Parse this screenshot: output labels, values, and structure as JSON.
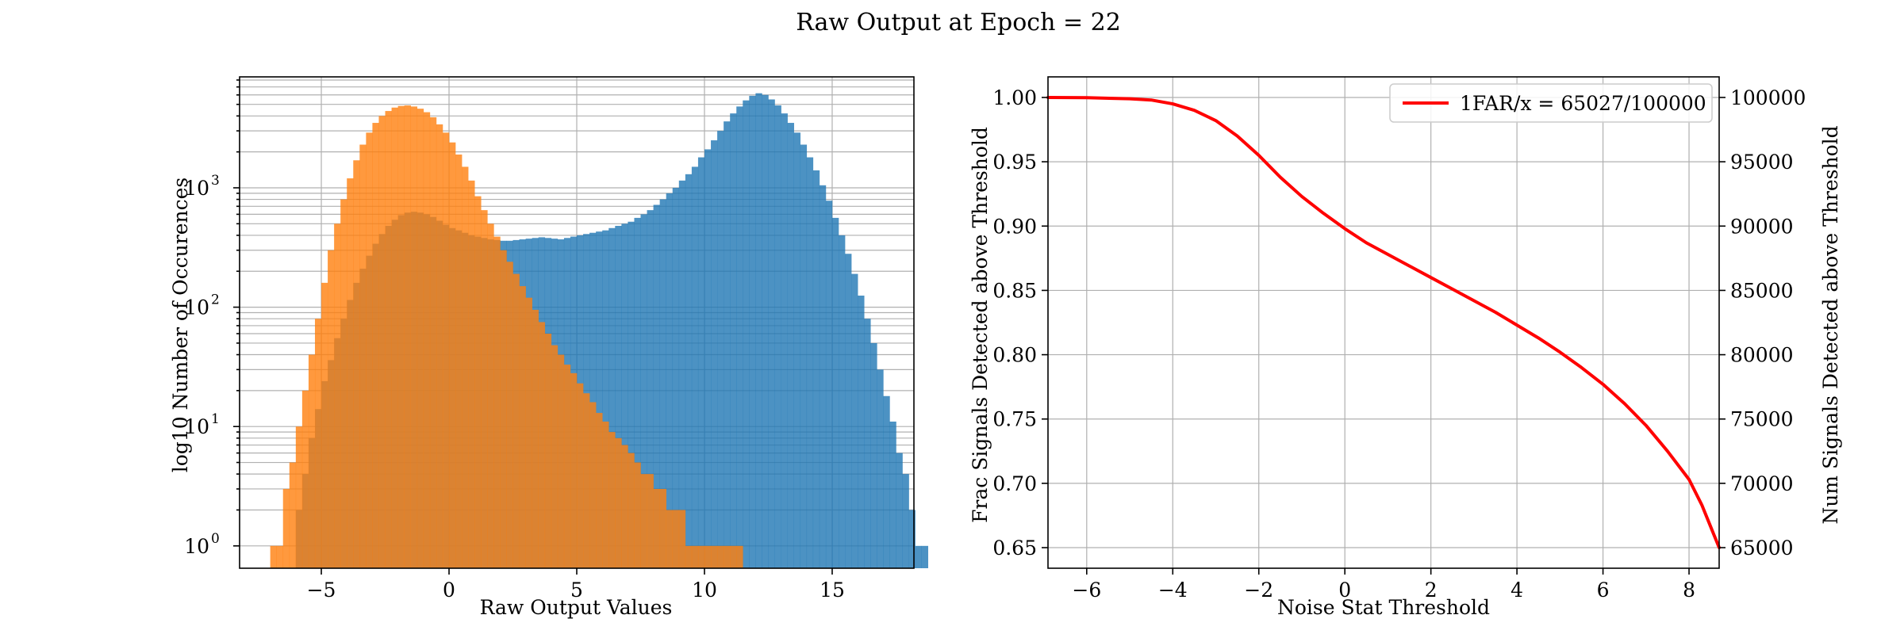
{
  "figure": {
    "title": "Raw Output at Epoch = 22"
  },
  "chart_data": [
    {
      "type": "histogram",
      "xlabel": "Raw Output Values",
      "ylabel": "log10 Number of Occurences",
      "xlim": [
        -8.2,
        18.2
      ],
      "ylim": [
        0.65,
        8500
      ],
      "yscale": "log",
      "grid": true,
      "x_ticks": [
        -5,
        0,
        5,
        10,
        15
      ],
      "x_tick_labels": [
        "−5",
        "0",
        "5",
        "10",
        "15"
      ],
      "y_ticks": [
        1,
        10,
        100,
        1000
      ],
      "y_tick_labels": [
        "10",
        "10",
        "10",
        "10"
      ],
      "y_tick_exponents": [
        "0",
        "1",
        "2",
        "3"
      ],
      "series": [
        {
          "color": "#1f77b4",
          "alpha": 0.8,
          "bins": {
            "start": -6.0,
            "width": 0.25,
            "counts": [
              2,
              4,
              8,
              14,
              24,
              36,
              55,
              80,
              115,
              160,
              210,
              270,
              340,
              410,
              480,
              540,
              590,
              620,
              630,
              620,
              600,
              570,
              530,
              490,
              460,
              440,
              420,
              400,
              390,
              380,
              370,
              365,
              360,
              360,
              365,
              370,
              375,
              380,
              385,
              380,
              375,
              370,
              380,
              390,
              400,
              410,
              420,
              430,
              440,
              460,
              480,
              500,
              520,
              560,
              600,
              650,
              720,
              800,
              900,
              1000,
              1150,
              1300,
              1500,
              1800,
              2100,
              2500,
              3000,
              3600,
              4200,
              4800,
              5400,
              5900,
              6200,
              6000,
              5500,
              4900,
              4200,
              3500,
              2900,
              2300,
              1800,
              1400,
              1050,
              780,
              560,
              400,
              280,
              190,
              125,
              80,
              50,
              30,
              18,
              11,
              6,
              4,
              2,
              1,
              1
            ]
          }
        },
        {
          "color": "#ff7f0e",
          "alpha": 0.8,
          "bins": {
            "start": -7.0,
            "width": 0.25,
            "counts": [
              1,
              1,
              3,
              5,
              10,
              20,
              40,
              80,
              160,
              300,
              500,
              800,
              1200,
              1700,
              2300,
              2900,
              3500,
              4000,
              4400,
              4700,
              4850,
              4900,
              4800,
              4600,
              4300,
              3900,
              3400,
              2900,
              2400,
              1900,
              1500,
              1150,
              850,
              650,
              500,
              390,
              300,
              240,
              190,
              150,
              120,
              95,
              75,
              60,
              48,
              40,
              33,
              28,
              23,
              19,
              16,
              13,
              11,
              9,
              8,
              7,
              6,
              5,
              4,
              4,
              3,
              3,
              2,
              2,
              2,
              1,
              1,
              1,
              1,
              1,
              1,
              1,
              1,
              1,
              0,
              0,
              0,
              0,
              0,
              0,
              0,
              0,
              0,
              0,
              0,
              0,
              0,
              0,
              0,
              0,
              0,
              0,
              0,
              0,
              0,
              0,
              0,
              0,
              0
            ]
          }
        }
      ]
    },
    {
      "type": "line",
      "xlabel": "Noise Stat Threshold",
      "ylabel": "Frac Signals Detected above Threshold",
      "ylabel_right": "Num Signals Detected above Threshold",
      "xlim": [
        -6.9,
        8.7
      ],
      "ylim": [
        0.634,
        1.016
      ],
      "ylim_right": [
        63400,
        101600
      ],
      "grid": true,
      "legend_placement": "upper right",
      "x_ticks": [
        -6,
        -4,
        -2,
        0,
        2,
        4,
        6,
        8
      ],
      "x_tick_labels": [
        "−6",
        "−4",
        "−2",
        "0",
        "2",
        "4",
        "6",
        "8"
      ],
      "y_ticks": [
        0.65,
        0.7,
        0.75,
        0.8,
        0.85,
        0.9,
        0.95,
        1.0
      ],
      "y_tick_labels": [
        "0.65",
        "0.70",
        "0.75",
        "0.80",
        "0.85",
        "0.90",
        "0.95",
        "1.00"
      ],
      "y_ticks_right": [
        65000,
        70000,
        75000,
        80000,
        85000,
        90000,
        95000,
        100000
      ],
      "y_tick_labels_right": [
        "65000",
        "70000",
        "75000",
        "80000",
        "85000",
        "90000",
        "95000",
        "100000"
      ],
      "series": [
        {
          "name": "1FAR/x = 65027/100000",
          "color": "#ff0000",
          "x": [
            -6.9,
            -6.0,
            -5.0,
            -4.5,
            -4.0,
            -3.5,
            -3.0,
            -2.5,
            -2.0,
            -1.5,
            -1.0,
            -0.5,
            0.0,
            0.5,
            1.0,
            1.5,
            2.0,
            2.5,
            3.0,
            3.5,
            4.0,
            4.5,
            5.0,
            5.5,
            6.0,
            6.5,
            7.0,
            7.5,
            8.0,
            8.3,
            8.7
          ],
          "y": [
            1.0,
            0.9998,
            0.999,
            0.998,
            0.995,
            0.99,
            0.982,
            0.97,
            0.955,
            0.938,
            0.923,
            0.91,
            0.898,
            0.887,
            0.878,
            0.869,
            0.86,
            0.851,
            0.842,
            0.833,
            0.823,
            0.813,
            0.802,
            0.79,
            0.777,
            0.762,
            0.745,
            0.725,
            0.703,
            0.683,
            0.65
          ]
        }
      ]
    }
  ]
}
